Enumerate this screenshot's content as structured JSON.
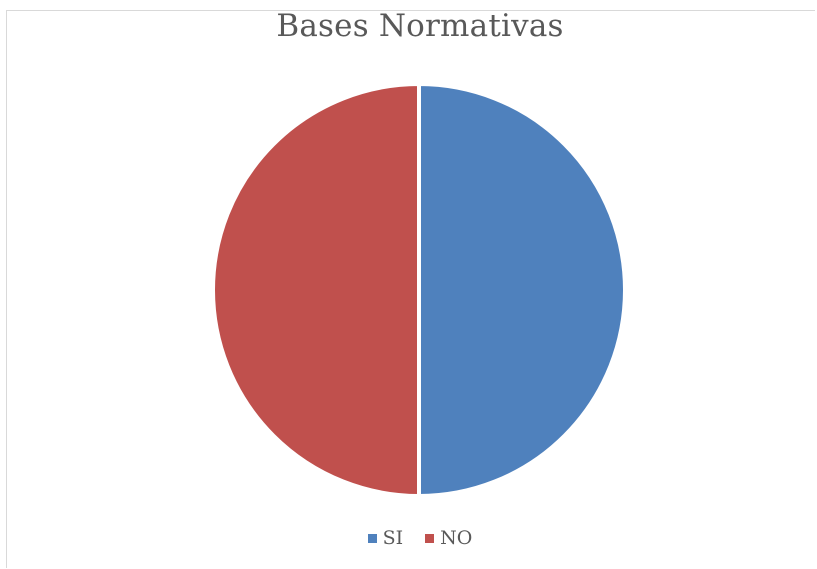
{
  "chart_data": {
    "type": "pie",
    "title": "Bases Normativas",
    "slices": [
      {
        "label": "SI",
        "value": 50,
        "color": "#4f81bd"
      },
      {
        "label": "NO",
        "value": 50,
        "color": "#c0504d"
      }
    ],
    "start_angle_deg": 0,
    "direction": "clockwise",
    "legend_position": "bottom"
  }
}
